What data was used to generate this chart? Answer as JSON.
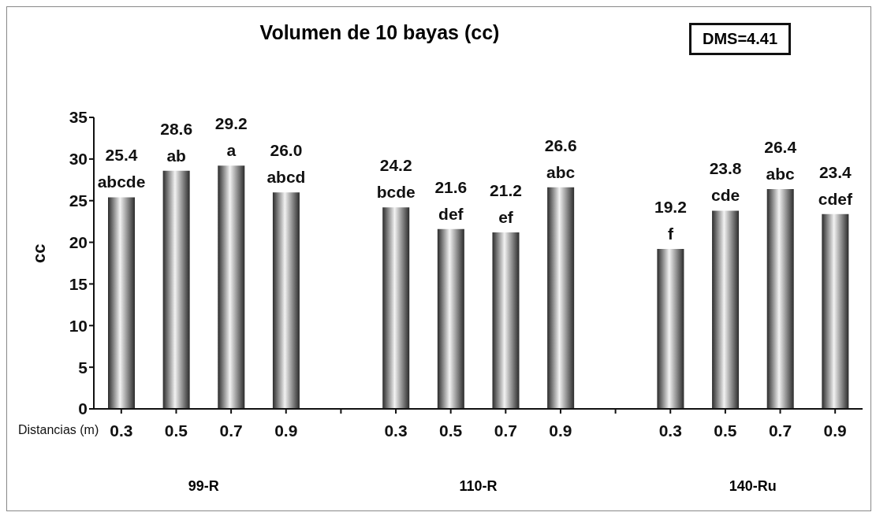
{
  "chart_data": {
    "type": "bar",
    "title": "Volumen de 10 bayas (cc)",
    "xlabel": "Distancias (m)",
    "ylabel": "cc",
    "categories": [
      "0.3",
      "0.5",
      "0.7",
      "0.9",
      null,
      "0.3",
      "0.5",
      "0.7",
      "0.9",
      null,
      "0.3",
      "0.5",
      "0.7",
      "0.9"
    ],
    "values": [
      25.4,
      28.6,
      29.2,
      26.0,
      null,
      24.2,
      21.6,
      21.2,
      26.6,
      null,
      19.2,
      23.8,
      26.4,
      23.4
    ],
    "value_labels": [
      "25.4 abcde",
      "28.6 ab",
      "29.2 a",
      "26.0 abcd",
      null,
      "24.2 bcde",
      "21.6 def",
      "21.2 ef",
      "26.6 abc",
      null,
      "19.2 f",
      "23.8 cde",
      "26.4 abc",
      "23.4 cdef"
    ],
    "color": "#2b2b2b",
    "ylim": [
      0,
      35
    ],
    "yticks": [
      0,
      5,
      10,
      15,
      20,
      25,
      30,
      35
    ],
    "grid": false,
    "annotations": [
      "DMS=4.41",
      "99-R",
      "110-R",
      "140-Ru"
    ]
  }
}
